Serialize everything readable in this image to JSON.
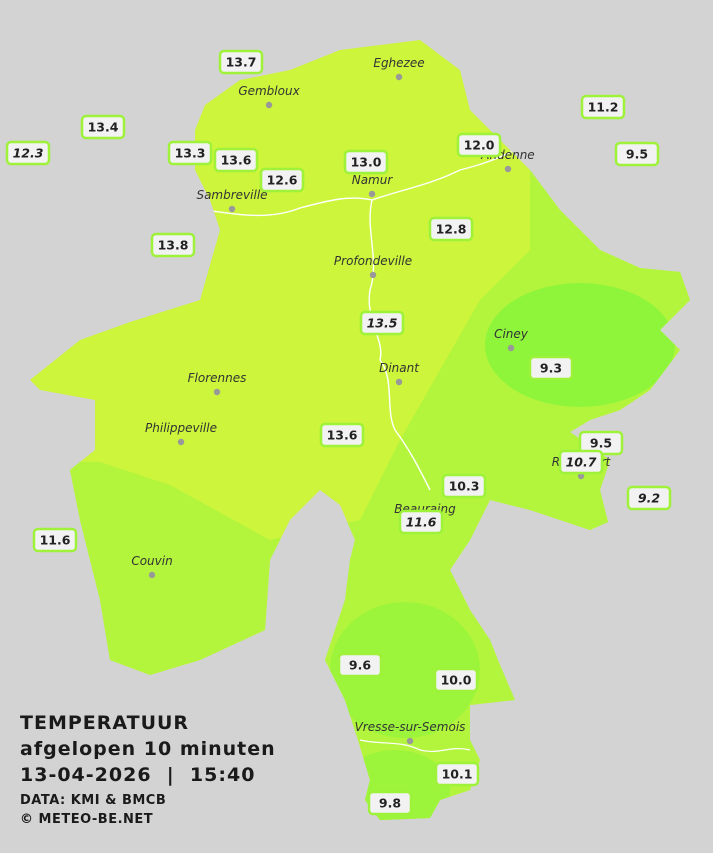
{
  "legend": {
    "title": "TEMPERATUUR",
    "subtitle": "afgelopen 10 minuten",
    "timestamp": "13-04-2026  |  15:40",
    "source": "DATA: KMI & BMCB",
    "copyright": "© METEO-BE.NET"
  },
  "cities": [
    "Eghezee",
    "Gembloux",
    "Andenne",
    "Namur",
    "Sambreville",
    "Profondeville",
    "Ciney",
    "Dinant",
    "Florennes",
    "Philippeville",
    "Rochefort",
    "Beauraing",
    "Couvin",
    "Vresse-sur-Semois"
  ],
  "stations": [
    {
      "label": "13.7",
      "italic": false
    },
    {
      "label": "13.4",
      "italic": false
    },
    {
      "label": "12.3",
      "italic": true
    },
    {
      "label": "13.3",
      "italic": false
    },
    {
      "label": "13.6",
      "italic": false
    },
    {
      "label": "12.6",
      "italic": false
    },
    {
      "label": "13.0",
      "italic": false
    },
    {
      "label": "12.0",
      "italic": false
    },
    {
      "label": "11.2",
      "italic": false
    },
    {
      "label": "9.5",
      "italic": false
    },
    {
      "label": "13.8",
      "italic": false
    },
    {
      "label": "12.8",
      "italic": false
    },
    {
      "label": "13.5",
      "italic": true
    },
    {
      "label": "9.3",
      "italic": false
    },
    {
      "label": "13.6",
      "italic": false
    },
    {
      "label": "9.5",
      "italic": false
    },
    {
      "label": "10.7",
      "italic": true
    },
    {
      "label": "10.3",
      "italic": false
    },
    {
      "label": "9.2",
      "italic": true
    },
    {
      "label": "11.6",
      "italic": true
    },
    {
      "label": "11.6",
      "italic": false
    },
    {
      "label": "9.6",
      "italic": false
    },
    {
      "label": "10.0",
      "italic": false
    },
    {
      "label": "10.1",
      "italic": false
    },
    {
      "label": "9.8",
      "italic": false
    }
  ]
}
